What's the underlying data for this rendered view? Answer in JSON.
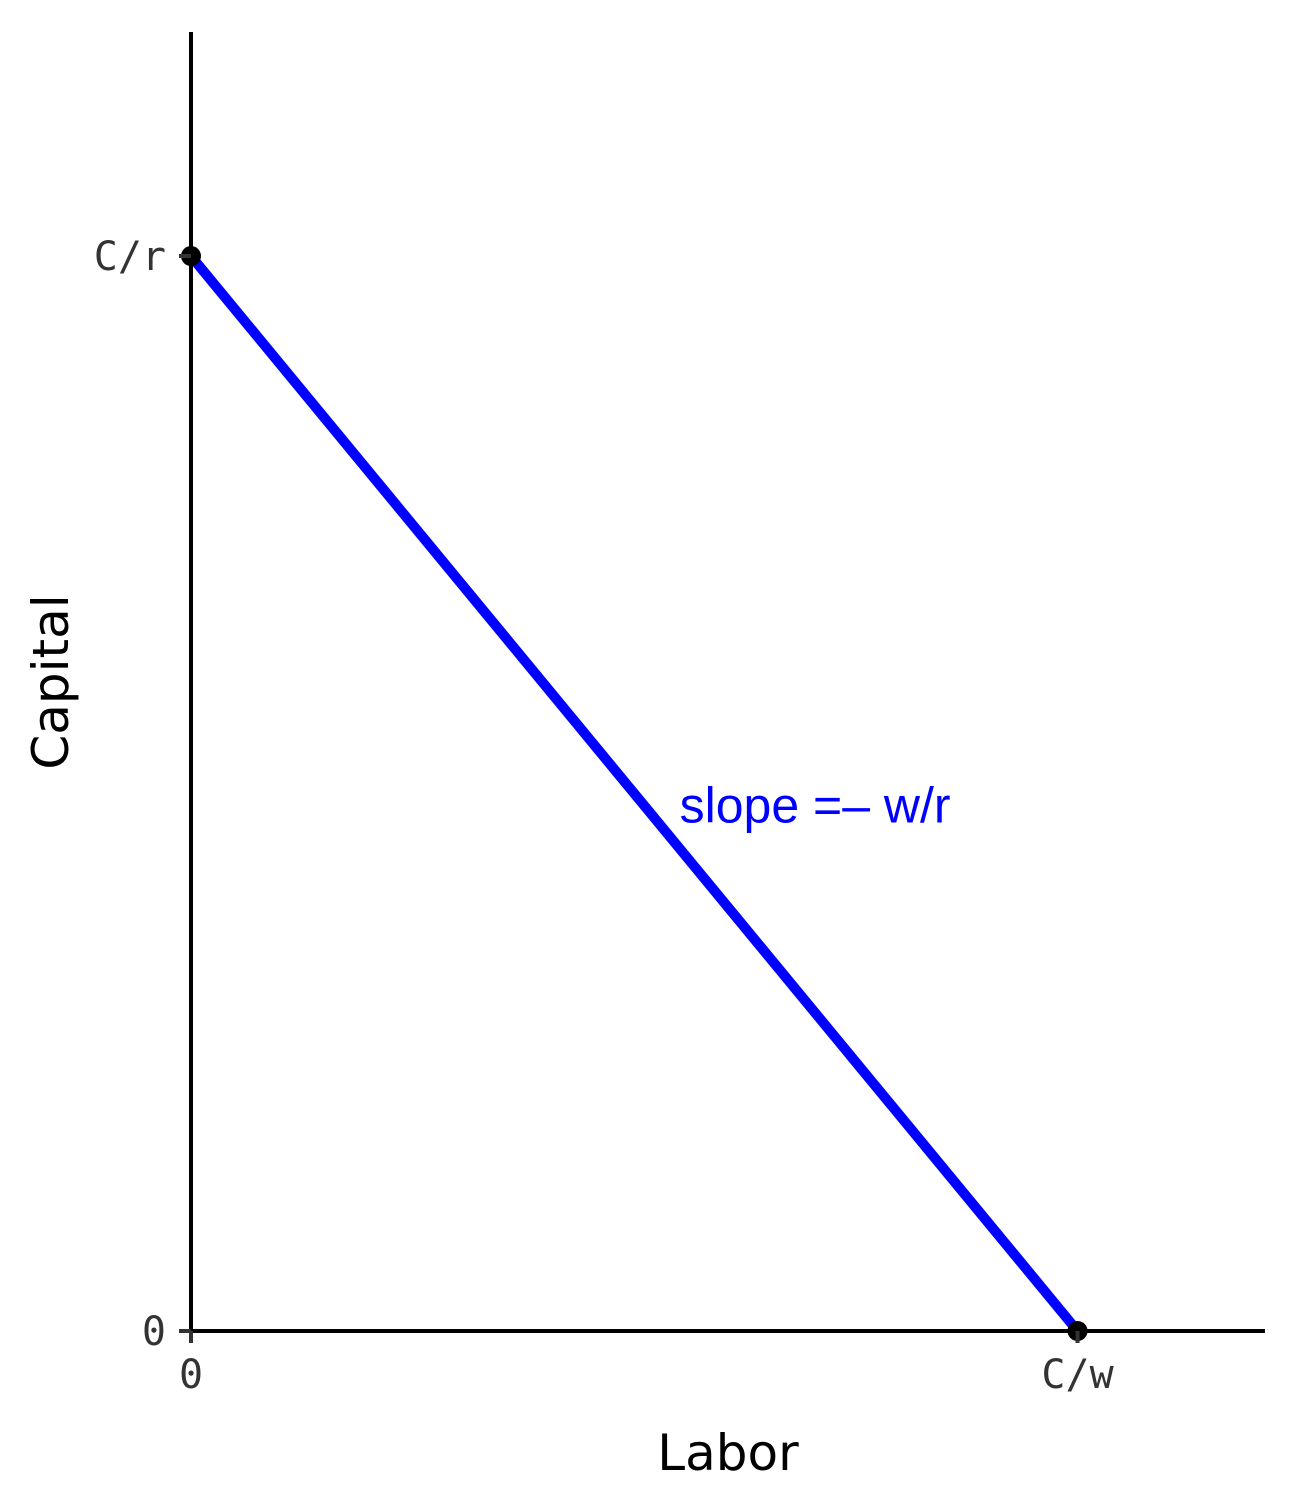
{
  "chart_data": {
    "type": "line",
    "xlabel": "Labor",
    "ylabel": "Capital",
    "xlim": [
      0,
      1.1
    ],
    "ylim": [
      0,
      1.1
    ],
    "x_ticks": [
      {
        "value": 0,
        "label": "0"
      },
      {
        "value": 1,
        "label": "C/w"
      }
    ],
    "y_ticks": [
      {
        "value": 0,
        "label": "0"
      },
      {
        "value": 1,
        "label": "C/r"
      }
    ],
    "series": [
      {
        "color": "#0000ff",
        "points": [
          {
            "x": 0,
            "y": 1
          },
          {
            "x": 1,
            "y": 0
          }
        ]
      }
    ],
    "endpoints": [
      {
        "x": 0,
        "y": 1
      },
      {
        "x": 1,
        "y": 0
      }
    ],
    "annotation": {
      "text": "slope =– w/r",
      "x": 0.55,
      "y": 0.5,
      "color": "#0000ff"
    },
    "grid": false,
    "legend": "none"
  }
}
